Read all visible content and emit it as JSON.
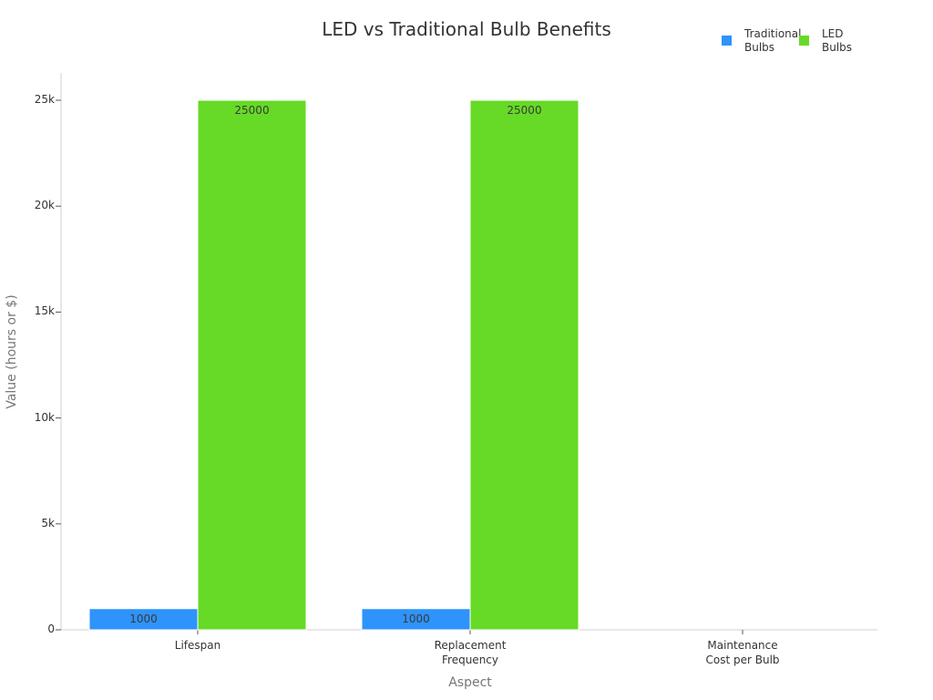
{
  "chart_data": {
    "type": "bar",
    "title": "LED vs Traditional Bulb Benefits",
    "xlabel": "Aspect",
    "ylabel": "Value (hours or $)",
    "categories": [
      "Lifespan",
      "Replacement Frequency",
      "Maintenance Cost per Bulb"
    ],
    "category_lines": [
      [
        "Lifespan"
      ],
      [
        "Replacement",
        "Frequency"
      ],
      [
        "Maintenance",
        "Cost per Bulb"
      ]
    ],
    "series": [
      {
        "name": "Traditional Bulbs",
        "legend_lines": [
          "Traditional",
          "Bulbs"
        ],
        "color": "#2e93fa",
        "values": [
          1000,
          1000,
          0
        ],
        "labels": [
          "1000",
          "1000",
          ""
        ]
      },
      {
        "name": "LED Bulbs",
        "legend_lines": [
          "LED",
          "Bulbs"
        ],
        "color": "#66da26",
        "values": [
          25000,
          25000,
          0
        ],
        "labels": [
          "25000",
          "25000",
          ""
        ]
      }
    ],
    "ylim": [
      0,
      26300
    ],
    "yticks": [
      0,
      5000,
      10000,
      15000,
      20000,
      25000
    ],
    "ytick_labels": [
      "0",
      "5k",
      "10k",
      "15k",
      "20k",
      "25k"
    ],
    "grid": false,
    "legend_position": "top-right"
  }
}
